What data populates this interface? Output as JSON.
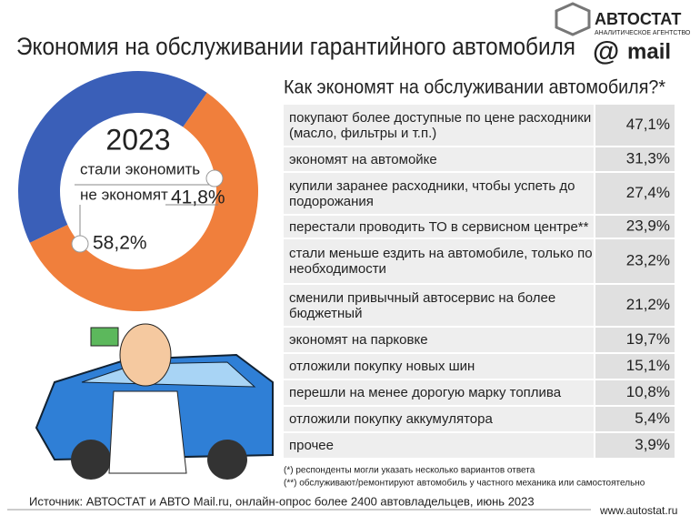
{
  "header": {
    "title": "Экономия на обслуживании гарантийного автомобиля",
    "brand": "АВТОСТАТ",
    "brand_sub": "АНАЛИТИЧЕСКОЕ АГЕНТСТВО",
    "partner": "mail"
  },
  "chart_data": {
    "type": "pie",
    "title": "2023",
    "categories": [
      "стали экономить",
      "не экономят"
    ],
    "values": [
      58.2,
      41.8
    ],
    "value_labels": [
      "58,2%",
      "41,8%"
    ],
    "colors": [
      "#f07f3c",
      "#3a5fb8"
    ]
  },
  "table": {
    "title": "Как экономят на обслуживании автомобиля?*",
    "rows": [
      [
        "покупают более доступные по цене расходники (масло, фильтры и т.п.)",
        "47,1%"
      ],
      [
        "экономят на автомойке",
        "31,3%"
      ],
      [
        "купили заранее расходники, чтобы успеть до подорожания",
        "27,4%"
      ],
      [
        "перестали проводить ТО в сервисном центре**",
        "23,9%"
      ],
      [
        "стали меньше ездить на автомобиле, только по необходимости",
        "23,2%"
      ],
      [
        "сменили привычный автосервис на более бюджетный",
        "21,2%"
      ],
      [
        "экономят на парковке",
        "19,7%"
      ],
      [
        "отложили покупку новых шин",
        "15,1%"
      ],
      [
        "перешли на менее дорогую марку топлива",
        "10,8%"
      ],
      [
        "отложили покупку аккумулятора",
        "5,4%"
      ],
      [
        "прочее",
        "3,9%"
      ]
    ],
    "notes": [
      "(*)  респонденты могли указать несколько вариантов ответа",
      "(**) обслуживают/ремонтируют автомобиль у частного механика или самостоятельно"
    ]
  },
  "footer": {
    "source": "Источник: АВТОСТАТ и АВТО Mail.ru, онлайн-опрос более 2400 автовладельцев, июнь 2023",
    "url": "www.autostat.ru"
  }
}
